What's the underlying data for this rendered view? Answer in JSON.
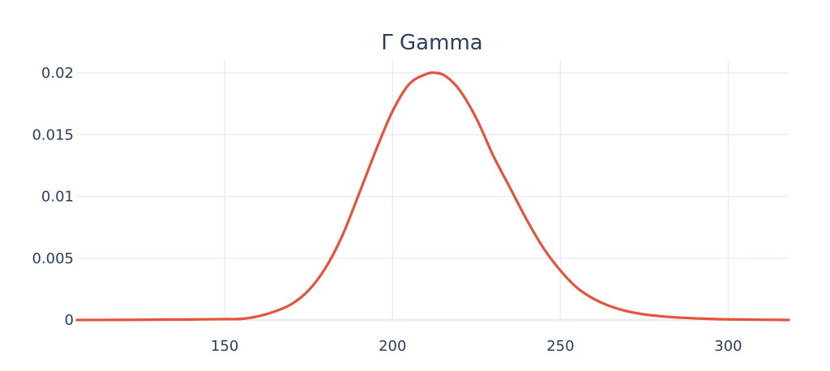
{
  "chart_data": {
    "type": "line",
    "title": "Γ Gamma",
    "xlabel": "",
    "ylabel": "",
    "xlim": [
      106,
      318
    ],
    "ylim": [
      0,
      0.02
    ],
    "x_ticks": [
      150,
      200,
      250,
      300
    ],
    "x_tick_labels": [
      "150",
      "200",
      "250",
      "300"
    ],
    "y_ticks": [
      0,
      0.005,
      0.01,
      0.015,
      0.02
    ],
    "y_tick_labels": [
      "0",
      "0.005",
      "0.01",
      "0.015",
      "0.02"
    ],
    "grid": true,
    "legend": false,
    "series": [
      {
        "name": "",
        "color": "#e5533d",
        "x": [
          106,
          120,
          140,
          150,
          155,
          160,
          165,
          170,
          175,
          180,
          185,
          190,
          195,
          200,
          205,
          210,
          213,
          216,
          220,
          225,
          230,
          235,
          240,
          245,
          250,
          255,
          260,
          265,
          270,
          275,
          280,
          285,
          290,
          295,
          300,
          310,
          318
        ],
        "y": [
          0,
          1e-05,
          4e-05,
          7e-05,
          9e-05,
          0.0003,
          0.0007,
          0.0013,
          0.0024,
          0.0042,
          0.0068,
          0.0102,
          0.0137,
          0.0169,
          0.0191,
          0.0199,
          0.02,
          0.0197,
          0.0186,
          0.0163,
          0.0133,
          0.0107,
          0.0081,
          0.0058,
          0.004,
          0.0026,
          0.0017,
          0.0011,
          0.0007,
          0.00045,
          0.0003,
          0.0002,
          0.00013,
          8e-05,
          5e-05,
          2e-05,
          0
        ]
      }
    ]
  }
}
